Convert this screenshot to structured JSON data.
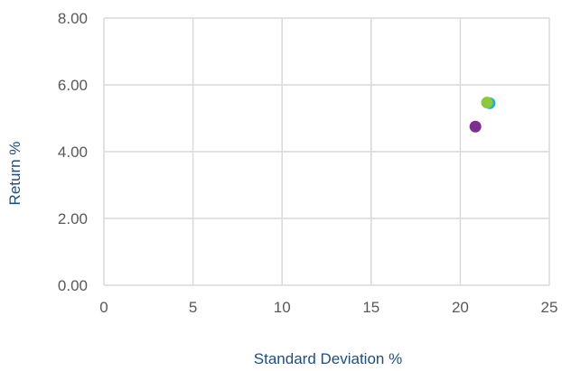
{
  "chart_data": {
    "type": "scatter",
    "title": "",
    "xlabel": "Standard Deviation %",
    "ylabel": "Return %",
    "xlim": [
      0,
      25
    ],
    "ylim": [
      0,
      8
    ],
    "x_ticks": [
      "0",
      "5",
      "10",
      "15",
      "20",
      "25"
    ],
    "y_ticks": [
      "0.00",
      "2.00",
      "4.00",
      "6.00",
      "8.00"
    ],
    "grid": true,
    "legend": "none",
    "series": [
      {
        "color": "#1ab0e8",
        "points": [
          {
            "x": 21.65,
            "y": 5.45
          }
        ]
      },
      {
        "color": "#8dc63f",
        "points": [
          {
            "x": 21.5,
            "y": 5.47
          }
        ]
      },
      {
        "color": "#7b2f8e",
        "points": [
          {
            "x": 20.85,
            "y": 4.75
          }
        ]
      }
    ]
  }
}
